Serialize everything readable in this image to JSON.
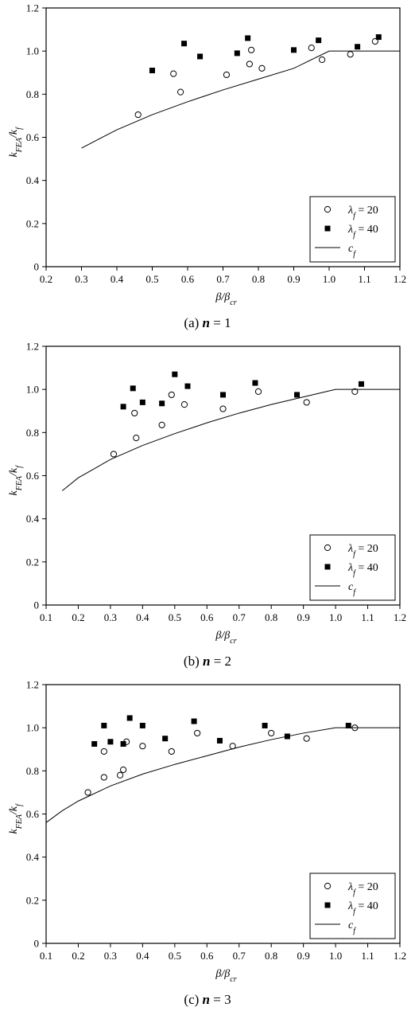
{
  "chart_data": [
    {
      "type": "scatter",
      "caption_prefix": "(a)",
      "caption_var": "n",
      "caption_value": "= 1",
      "ylabel": "k_FEA/k_f",
      "xlabel": "β/β_cr",
      "xlim": [
        0.2,
        1.2
      ],
      "ylim": [
        0,
        1.2
      ],
      "xticks": [
        "0.2",
        "0.3",
        "0.4",
        "0.5",
        "0.6",
        "0.7",
        "0.8",
        "0.9",
        "1.0",
        "1.1",
        "1.2"
      ],
      "yticks": [
        "0",
        "0.2",
        "0.4",
        "0.6",
        "0.8",
        "1.0",
        "1.2"
      ],
      "legend_position": "bottom-right",
      "series": [
        {
          "name": "λf = 20",
          "marker": "open-circle",
          "points": [
            [
              0.46,
              0.705
            ],
            [
              0.56,
              0.895
            ],
            [
              0.58,
              0.81
            ],
            [
              0.71,
              0.89
            ],
            [
              0.775,
              0.94
            ],
            [
              0.78,
              1.005
            ],
            [
              0.81,
              0.92
            ],
            [
              0.95,
              1.015
            ],
            [
              0.98,
              0.96
            ],
            [
              1.06,
              0.985
            ],
            [
              1.13,
              1.045
            ]
          ]
        },
        {
          "name": "λf = 40",
          "marker": "filled-square",
          "points": [
            [
              0.5,
              0.91
            ],
            [
              0.59,
              1.035
            ],
            [
              0.635,
              0.975
            ],
            [
              0.74,
              0.99
            ],
            [
              0.77,
              1.06
            ],
            [
              0.9,
              1.005
            ],
            [
              0.97,
              1.05
            ],
            [
              1.08,
              1.02
            ],
            [
              1.14,
              1.065
            ]
          ]
        },
        {
          "name": "cf",
          "marker": "line",
          "points": [
            [
              0.3,
              0.55
            ],
            [
              0.4,
              0.635
            ],
            [
              0.5,
              0.705
            ],
            [
              0.6,
              0.765
            ],
            [
              0.7,
              0.82
            ],
            [
              0.8,
              0.87
            ],
            [
              0.9,
              0.92
            ],
            [
              1.0,
              1.0
            ],
            [
              1.2,
              1.0
            ]
          ]
        }
      ]
    },
    {
      "type": "scatter",
      "caption_prefix": "(b)",
      "caption_var": "n",
      "caption_value": "= 2",
      "ylabel": "k_FEA/k_f",
      "xlabel": "β/β_cr",
      "xlim": [
        0.1,
        1.2
      ],
      "ylim": [
        0,
        1.2
      ],
      "xticks": [
        "0.1",
        "0.2",
        "0.3",
        "0.4",
        "0.5",
        "0.6",
        "0.7",
        "0.8",
        "0.9",
        "1.0",
        "1.1",
        "1.2"
      ],
      "yticks": [
        "0",
        "0.2",
        "0.4",
        "0.6",
        "0.8",
        "1.0",
        "1.2"
      ],
      "legend_position": "bottom-right",
      "series": [
        {
          "name": "λf = 20",
          "marker": "open-circle",
          "points": [
            [
              0.31,
              0.7
            ],
            [
              0.375,
              0.89
            ],
            [
              0.38,
              0.775
            ],
            [
              0.46,
              0.835
            ],
            [
              0.49,
              0.975
            ],
            [
              0.53,
              0.93
            ],
            [
              0.65,
              0.91
            ],
            [
              0.76,
              0.99
            ],
            [
              0.91,
              0.94
            ],
            [
              1.06,
              0.99
            ]
          ]
        },
        {
          "name": "λf = 40",
          "marker": "filled-square",
          "points": [
            [
              0.34,
              0.92
            ],
            [
              0.37,
              1.005
            ],
            [
              0.4,
              0.94
            ],
            [
              0.46,
              0.935
            ],
            [
              0.5,
              1.07
            ],
            [
              0.54,
              1.015
            ],
            [
              0.65,
              0.975
            ],
            [
              0.75,
              1.03
            ],
            [
              0.88,
              0.975
            ],
            [
              1.08,
              1.025
            ]
          ]
        },
        {
          "name": "cf",
          "marker": "line",
          "points": [
            [
              0.15,
              0.53
            ],
            [
              0.2,
              0.59
            ],
            [
              0.3,
              0.675
            ],
            [
              0.4,
              0.74
            ],
            [
              0.5,
              0.795
            ],
            [
              0.6,
              0.845
            ],
            [
              0.7,
              0.89
            ],
            [
              0.8,
              0.93
            ],
            [
              0.9,
              0.965
            ],
            [
              1.0,
              1.0
            ],
            [
              1.2,
              1.0
            ]
          ]
        }
      ]
    },
    {
      "type": "scatter",
      "caption_prefix": "(c)",
      "caption_var": "n",
      "caption_value": "= 3",
      "ylabel": "k_FEA/k_f",
      "xlabel": "β/β_cr",
      "xlim": [
        0.1,
        1.2
      ],
      "ylim": [
        0,
        1.2
      ],
      "xticks": [
        "0.1",
        "0.2",
        "0.3",
        "0.4",
        "0.5",
        "0.6",
        "0.7",
        "0.8",
        "0.9",
        "1.0",
        "1.1",
        "1.2"
      ],
      "yticks": [
        "0",
        "0.2",
        "0.4",
        "0.6",
        "0.8",
        "1.0",
        "1.2"
      ],
      "legend_position": "bottom-right",
      "series": [
        {
          "name": "λf = 20",
          "marker": "open-circle",
          "points": [
            [
              0.23,
              0.7
            ],
            [
              0.28,
              0.89
            ],
            [
              0.28,
              0.77
            ],
            [
              0.33,
              0.78
            ],
            [
              0.34,
              0.805
            ],
            [
              0.35,
              0.935
            ],
            [
              0.4,
              0.915
            ],
            [
              0.49,
              0.89
            ],
            [
              0.57,
              0.975
            ],
            [
              0.68,
              0.915
            ],
            [
              0.8,
              0.975
            ],
            [
              0.91,
              0.95
            ],
            [
              1.06,
              1.0
            ]
          ]
        },
        {
          "name": "λf = 40",
          "marker": "filled-square",
          "points": [
            [
              0.25,
              0.925
            ],
            [
              0.28,
              1.01
            ],
            [
              0.3,
              0.935
            ],
            [
              0.34,
              0.925
            ],
            [
              0.36,
              1.045
            ],
            [
              0.4,
              1.01
            ],
            [
              0.47,
              0.95
            ],
            [
              0.56,
              1.03
            ],
            [
              0.64,
              0.94
            ],
            [
              0.78,
              1.01
            ],
            [
              0.85,
              0.96
            ],
            [
              1.04,
              1.01
            ]
          ]
        },
        {
          "name": "cf",
          "marker": "line",
          "points": [
            [
              0.1,
              0.56
            ],
            [
              0.15,
              0.615
            ],
            [
              0.2,
              0.66
            ],
            [
              0.3,
              0.73
            ],
            [
              0.4,
              0.785
            ],
            [
              0.5,
              0.83
            ],
            [
              0.6,
              0.87
            ],
            [
              0.7,
              0.91
            ],
            [
              0.8,
              0.945
            ],
            [
              0.9,
              0.975
            ],
            [
              1.0,
              1.0
            ],
            [
              1.2,
              1.0
            ]
          ]
        }
      ]
    }
  ]
}
